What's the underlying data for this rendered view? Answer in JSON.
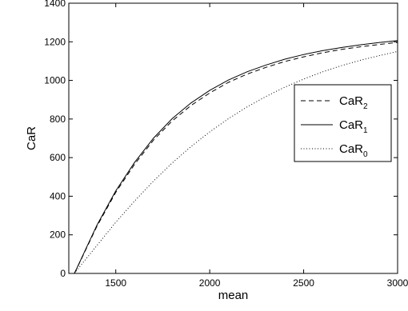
{
  "chart_data": {
    "type": "line",
    "title": "",
    "xlabel": "mean",
    "ylabel": "CaR",
    "xlim": [
      1250,
      3000
    ],
    "ylim": [
      0,
      1400
    ],
    "xticks": [
      1500,
      2000,
      2500,
      3000
    ],
    "yticks": [
      0,
      200,
      400,
      600,
      800,
      1000,
      1200,
      1400
    ],
    "grid": false,
    "legend_position": "right",
    "series": [
      {
        "name": "CaR_2",
        "label_main": "CaR",
        "label_sub": "2",
        "line_style": "dashed",
        "color": "#000000",
        "x": [
          1280,
          1300,
          1400,
          1500,
          1600,
          1700,
          1800,
          1900,
          2000,
          2100,
          2200,
          2300,
          2400,
          2500,
          2600,
          2700,
          2800,
          2900,
          3000
        ],
        "y": [
          0,
          40,
          245,
          420,
          565,
          690,
          790,
          870,
          935,
          990,
          1033,
          1068,
          1098,
          1122,
          1143,
          1160,
          1174,
          1186,
          1197
        ]
      },
      {
        "name": "CaR_1",
        "label_main": "CaR",
        "label_sub": "1",
        "line_style": "solid",
        "color": "#000000",
        "x": [
          1280,
          1300,
          1400,
          1500,
          1600,
          1700,
          1800,
          1900,
          2000,
          2100,
          2200,
          2300,
          2400,
          2500,
          2600,
          2700,
          2800,
          2900,
          3000
        ],
        "y": [
          0,
          42,
          250,
          428,
          575,
          700,
          802,
          883,
          948,
          1002,
          1045,
          1080,
          1110,
          1134,
          1154,
          1170,
          1184,
          1196,
          1206
        ]
      },
      {
        "name": "CaR_0",
        "label_main": "CaR",
        "label_sub": "0",
        "line_style": "dotted",
        "color": "#000000",
        "x": [
          1280,
          1300,
          1400,
          1500,
          1600,
          1700,
          1800,
          1900,
          2000,
          2100,
          2200,
          2300,
          2400,
          2500,
          2600,
          2700,
          2800,
          2900,
          3000
        ],
        "y": [
          0,
          25,
          145,
          265,
          375,
          478,
          572,
          657,
          733,
          802,
          863,
          917,
          965,
          1007,
          1044,
          1076,
          1104,
          1128,
          1150
        ]
      }
    ]
  }
}
